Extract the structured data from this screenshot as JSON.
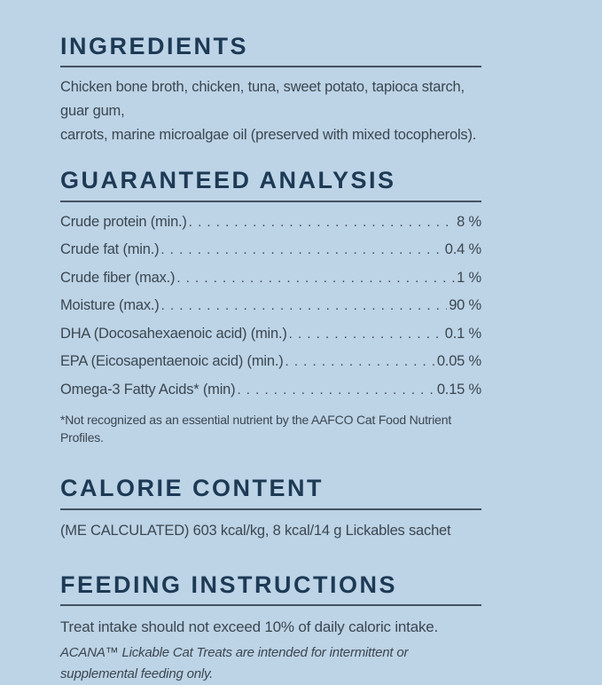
{
  "colors": {
    "background": "#bdd3e6",
    "heading": "#1d3a55",
    "body": "#3a4750",
    "rule": "#44525f"
  },
  "ingredients": {
    "title": "INGREDIENTS",
    "lines": [
      "Chicken bone broth, chicken, tuna, sweet potato, tapioca starch, guar gum,",
      "carrots, marine microalgae oil (preserved with mixed tocopherols)."
    ]
  },
  "guaranteed_analysis": {
    "title": "GUARANTEED ANALYSIS",
    "rows": [
      {
        "label": "Crude protein (min.)",
        "value": "8 %"
      },
      {
        "label": "Crude fat (min.)",
        "value": "0.4 %"
      },
      {
        "label": "Crude fiber (max.)",
        "value": "1 %"
      },
      {
        "label": "Moisture (max.)",
        "value": "90 %"
      },
      {
        "label": "DHA (Docosahexaenoic acid) (min.)",
        "value": "0.1 %"
      },
      {
        "label": "EPA (Eicosapentaenoic acid) (min.)",
        "value": "0.05 %"
      },
      {
        "label": "Omega-3 Fatty Acids* (min)",
        "value": "0.15 %"
      }
    ],
    "footnote": "*Not recognized as an essential nutrient by the AAFCO Cat Food Nutrient Profiles."
  },
  "calorie_content": {
    "title": "CALORIE CONTENT",
    "text": "(ME CALCULATED) 603 kcal/kg, 8 kcal/14 g Lickables sachet"
  },
  "feeding_instructions": {
    "title": "FEEDING INSTRUCTIONS",
    "text": "Treat intake should not exceed 10% of daily caloric intake.",
    "note": "ACANA™ Lickable Cat Treats are intended for intermittent or supplemental feeding only."
  }
}
